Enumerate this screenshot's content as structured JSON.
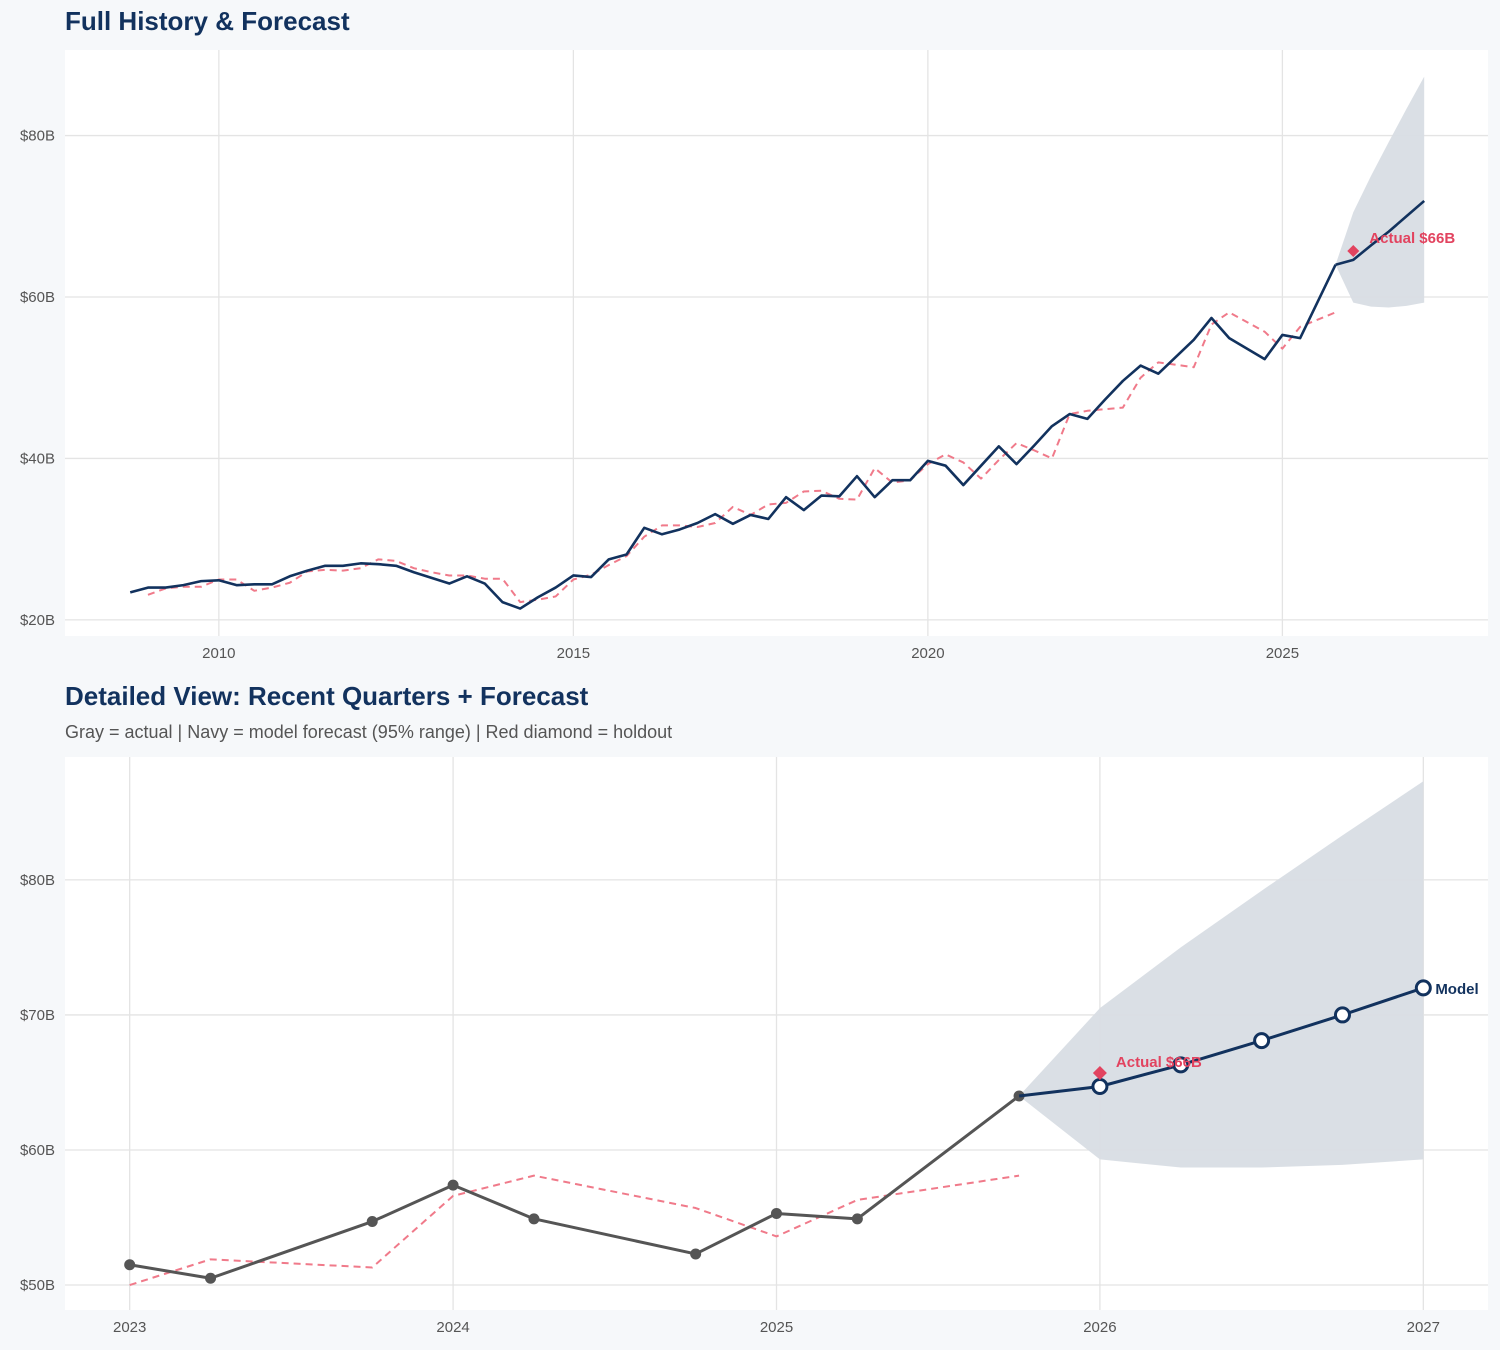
{
  "colors": {
    "navy": "#12325e",
    "gray_actual": "#555555",
    "fitted": "#f07a8a",
    "holdout": "#e2435f",
    "band": "#d8dde4",
    "background": "#f6f8fa",
    "grid": "#e4e4e4"
  },
  "chart_data": [
    {
      "type": "line",
      "title": "Full History & Forecast",
      "xlim": [
        2007.83,
        2027.9
      ],
      "ylim": [
        18,
        90.6
      ],
      "x_ticks": [
        2010,
        2015,
        2020,
        2025
      ],
      "x_tick_labels": [
        "2010",
        "2015",
        "2020",
        "2025"
      ],
      "y_ticks": [
        20,
        40,
        60,
        80
      ],
      "y_tick_labels": [
        "$20B",
        "$40B",
        "$60B",
        "$80B"
      ],
      "grid": true,
      "actual_color": "#12325e",
      "actual_markers": false,
      "actual": {
        "x": [
          2008.75,
          2009,
          2009.25,
          2009.5,
          2009.75,
          2010,
          2010.25,
          2010.5,
          2010.75,
          2011,
          2011.25,
          2011.5,
          2011.75,
          2012,
          2012.25,
          2012.5,
          2012.75,
          2013,
          2013.25,
          2013.5,
          2013.75,
          2014,
          2014.25,
          2014.5,
          2014.75,
          2015,
          2015.25,
          2015.5,
          2015.75,
          2016,
          2016.25,
          2016.5,
          2016.75,
          2017,
          2017.25,
          2017.5,
          2017.75,
          2018,
          2018.25,
          2018.5,
          2018.75,
          2019,
          2019.25,
          2019.5,
          2019.75,
          2020,
          2020.25,
          2020.5,
          2020.75,
          2021,
          2021.25,
          2021.5,
          2021.75,
          2022,
          2022.25,
          2022.5,
          2022.75,
          2023,
          2023.25,
          2023.75,
          2024,
          2024.25,
          2024.75,
          2025,
          2025.25,
          2025.75
        ],
        "y": [
          23.4,
          24.0,
          24.0,
          24.3,
          24.8,
          24.9,
          24.3,
          24.4,
          24.4,
          25.4,
          26.1,
          26.7,
          26.7,
          27.0,
          26.9,
          26.7,
          25.9,
          25.2,
          24.5,
          25.4,
          24.5,
          22.2,
          21.4,
          22.8,
          24.0,
          25.5,
          25.3,
          27.5,
          28.1,
          31.4,
          30.6,
          31.2,
          32.0,
          33.1,
          31.9,
          33.0,
          32.5,
          35.2,
          33.6,
          35.4,
          35.3,
          37.8,
          35.2,
          37.3,
          37.3,
          39.7,
          39.1,
          36.7,
          39.1,
          41.5,
          39.3,
          41.6,
          44.0,
          45.5,
          44.9,
          47.3,
          49.6,
          51.5,
          50.5,
          54.7,
          57.4,
          54.9,
          52.3,
          55.3,
          54.9,
          64.0
        ]
      },
      "fitted": {
        "x": [
          2009,
          2009.25,
          2009.5,
          2009.75,
          2010,
          2010.25,
          2010.5,
          2010.75,
          2011,
          2011.25,
          2011.5,
          2011.75,
          2012,
          2012.25,
          2012.5,
          2012.75,
          2013,
          2013.25,
          2013.5,
          2013.75,
          2014,
          2014.25,
          2014.5,
          2014.75,
          2015,
          2015.25,
          2015.5,
          2015.75,
          2016,
          2016.25,
          2016.5,
          2016.75,
          2017,
          2017.25,
          2017.5,
          2017.75,
          2018,
          2018.25,
          2018.5,
          2018.75,
          2019,
          2019.25,
          2019.5,
          2019.75,
          2020,
          2020.25,
          2020.5,
          2020.75,
          2021,
          2021.25,
          2021.5,
          2021.75,
          2022,
          2022.25,
          2022.5,
          2022.75,
          2023,
          2023.25,
          2023.75,
          2024,
          2024.25,
          2024.75,
          2025,
          2025.25,
          2025.75
        ],
        "y": [
          23.1,
          23.9,
          24.1,
          24.1,
          25.0,
          25.0,
          23.6,
          24.0,
          24.6,
          26.0,
          26.2,
          26.1,
          26.4,
          27.5,
          27.3,
          26.4,
          25.9,
          25.5,
          25.5,
          25.1,
          25.1,
          22.2,
          22.5,
          22.9,
          25.0,
          25.6,
          26.8,
          27.9,
          30.3,
          31.7,
          31.7,
          31.5,
          32.0,
          34.0,
          33.0,
          34.3,
          34.5,
          35.9,
          36.0,
          35.0,
          34.9,
          38.8,
          37.0,
          37.3,
          39.3,
          40.5,
          39.5,
          37.5,
          39.8,
          41.9,
          41.0,
          40.0,
          45.5,
          45.9,
          46.1,
          46.3,
          50.0,
          51.9,
          51.3,
          56.6,
          58.1,
          55.7,
          53.6,
          56.3,
          58.1
        ]
      },
      "forecast": {
        "x": [
          2025.75,
          2026,
          2026.25,
          2026.5,
          2026.75,
          2027
        ],
        "y": [
          64.0,
          64.6,
          66.4,
          68.1,
          70.0,
          71.9
        ],
        "markers": false
      },
      "band": {
        "label": "95% range",
        "x": [
          2025.75,
          2026,
          2026.25,
          2026.5,
          2026.75,
          2027
        ],
        "lower": [
          64.0,
          59.3,
          58.8,
          58.7,
          58.9,
          59.3
        ],
        "upper": [
          64.0,
          70.5,
          75.0,
          79.2,
          83.3,
          87.3
        ]
      },
      "holdout": {
        "x": 2026,
        "y": 65.7,
        "label": "Actual $66B"
      },
      "end_label": ""
    },
    {
      "type": "line",
      "title": "Detailed View: Recent Quarters + Forecast",
      "subtitle": "Gray = actual  |  Navy = model forecast (95% range)  |  Red diamond = holdout",
      "xlim": [
        2022.8,
        2027.2
      ],
      "ylim": [
        48.15,
        89.1
      ],
      "x_ticks": [
        2023,
        2024,
        2025,
        2026,
        2027
      ],
      "x_tick_labels": [
        "2023",
        "2024",
        "2025",
        "2026",
        "2027"
      ],
      "y_ticks": [
        50,
        60,
        70,
        80
      ],
      "y_tick_labels": [
        "$50B",
        "$60B",
        "$70B",
        "$80B"
      ],
      "grid": true,
      "actual_color": "#555555",
      "actual_markers": true,
      "actual": {
        "x": [
          2023,
          2023.25,
          2023.75,
          2024,
          2024.25,
          2024.75,
          2025,
          2025.25,
          2025.75
        ],
        "y": [
          51.5,
          50.5,
          54.7,
          57.4,
          54.9,
          52.3,
          55.3,
          54.9,
          64.0
        ]
      },
      "fitted": {
        "x": [
          2023,
          2023.25,
          2023.75,
          2024,
          2024.25,
          2024.75,
          2025,
          2025.25,
          2025.75
        ],
        "y": [
          50.0,
          51.9,
          51.3,
          56.6,
          58.1,
          55.7,
          53.6,
          56.3,
          58.1
        ]
      },
      "forecast": {
        "x": [
          2025.75,
          2026,
          2026.25,
          2026.5,
          2026.75,
          2027
        ],
        "y": [
          64.0,
          64.7,
          66.3,
          68.1,
          70.0,
          72.0
        ],
        "markers": true
      },
      "band": {
        "label": "95% range",
        "x": [
          2025.75,
          2026,
          2026.25,
          2026.5,
          2026.75,
          2027
        ],
        "lower": [
          64.0,
          59.3,
          58.7,
          58.7,
          58.9,
          59.3
        ],
        "upper": [
          64.0,
          70.5,
          75.0,
          79.2,
          83.3,
          87.3
        ]
      },
      "holdout": {
        "x": 2026,
        "y": 65.7,
        "label": "Actual $66B"
      },
      "end_label": "Model"
    }
  ]
}
